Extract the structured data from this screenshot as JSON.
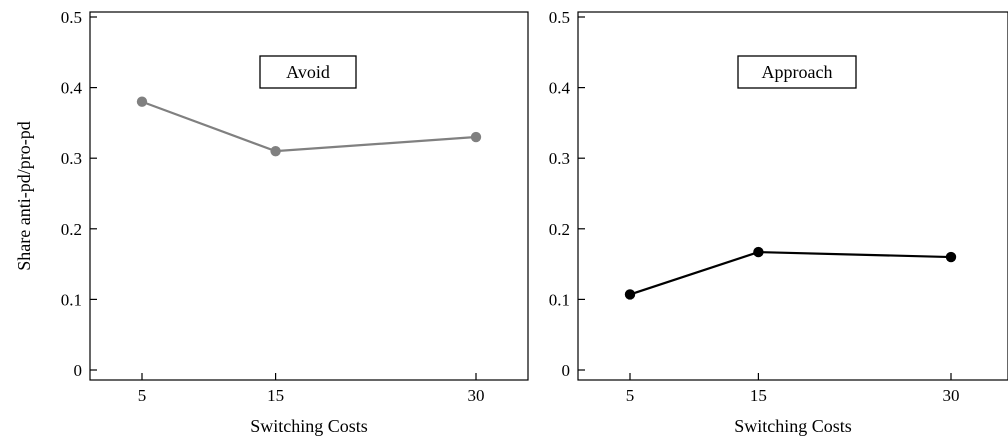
{
  "chart_data": [
    {
      "type": "line",
      "title": "Avoid",
      "xlabel": "Switching Costs",
      "ylabel": "Share anti-pd/pro-pd",
      "categories": [
        "5",
        "15",
        "30"
      ],
      "x": [
        5,
        15,
        30
      ],
      "ylim": [
        0,
        0.5
      ],
      "yticks": [
        "0",
        "0.1",
        "0.2",
        "0.3",
        "0.4",
        "0.5"
      ],
      "series": [
        {
          "values": [
            0.38,
            0.31,
            0.33
          ],
          "color": "#808080"
        }
      ],
      "grid": false,
      "legend": "none"
    },
    {
      "type": "line",
      "title": "Approach",
      "xlabel": "Switching Costs",
      "ylabel": "",
      "categories": [
        "5",
        "15",
        "30"
      ],
      "x": [
        5,
        15,
        30
      ],
      "ylim": [
        0,
        0.5
      ],
      "yticks": [
        "0",
        "0.1",
        "0.2",
        "0.3",
        "0.4",
        "0.5"
      ],
      "series": [
        {
          "values": [
            0.107,
            0.167,
            0.16
          ],
          "color": "#000000"
        }
      ],
      "grid": false,
      "legend": "none"
    }
  ]
}
